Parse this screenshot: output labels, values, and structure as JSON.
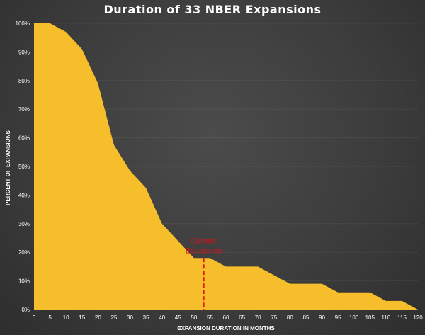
{
  "chart_data": {
    "type": "area",
    "title": "Duration of 33 NBER Expansions",
    "xlabel": "EXPANSION DURATION IN MONTHS",
    "ylabel": "PERCENT OF EXPANSIONS",
    "xlim": [
      0,
      120
    ],
    "ylim": [
      0,
      100
    ],
    "x_ticks": [
      0,
      5,
      10,
      15,
      20,
      25,
      30,
      35,
      40,
      45,
      50,
      55,
      60,
      65,
      70,
      75,
      80,
      85,
      90,
      95,
      100,
      105,
      110,
      115,
      120
    ],
    "y_ticks": [
      0,
      10,
      20,
      30,
      40,
      50,
      60,
      70,
      80,
      90,
      100
    ],
    "y_tick_labels": [
      "0%",
      "10%",
      "20%",
      "30%",
      "40%",
      "50%",
      "60%",
      "70%",
      "80%",
      "90%",
      "100%"
    ],
    "grid": true,
    "series": [
      {
        "name": "Percent of Expansions",
        "x": [
          0,
          5,
          10,
          15,
          20,
          25,
          30,
          35,
          40,
          45,
          50,
          55,
          60,
          65,
          70,
          75,
          80,
          85,
          90,
          95,
          100,
          105,
          110,
          115,
          120
        ],
        "y": [
          100,
          100,
          97,
          91,
          79,
          57.5,
          48.5,
          42.5,
          30,
          24,
          18,
          18,
          15,
          15,
          15,
          12,
          9,
          9,
          9,
          6,
          6,
          6,
          3,
          3,
          0
        ]
      }
    ],
    "annotations": [
      {
        "text_line1": "Current",
        "text_line2": "Expansion",
        "x": 53,
        "y_top": 18,
        "style": "dashed-vertical-line"
      }
    ],
    "colors": {
      "fill": "#F5BE2A",
      "marker": "#E8121C",
      "annotation_text": "#C8151D",
      "text": "#FFFFFF"
    }
  }
}
